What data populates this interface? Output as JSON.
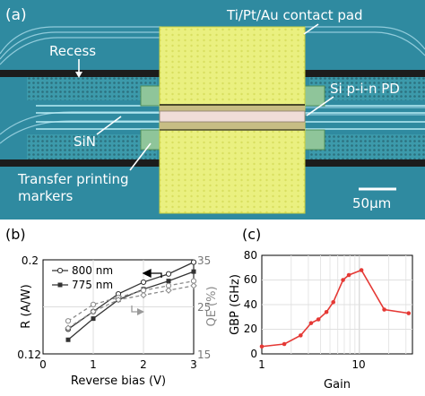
{
  "panel_a": {
    "label": "(a)",
    "annotations": {
      "contact_pad": "Ti/Pt/Au contact pad",
      "recess": "Recess",
      "photodiode": "Si p-i-n PD",
      "sin": "SiN",
      "markers_line1": "Transfer printing",
      "markers_line2": "markers",
      "scale_bar": "50μm"
    },
    "colors": {
      "substrate": "#2f8aa0",
      "recess_band": "#1c1c1c",
      "pad": "#eef070",
      "waveguide": "#9fd8e8"
    }
  },
  "panel_b": {
    "label": "(b)",
    "legend": [
      "800 nm",
      "775 nm"
    ],
    "left_axis_ticks": [
      "0.2",
      "0.12"
    ],
    "right_axis_ticks": [
      "35",
      "25",
      "15"
    ],
    "x_ticks": [
      "0",
      "1",
      "2",
      "3"
    ],
    "xlabel": "Reverse bias (V)",
    "ylabel_left": "R (A/W)",
    "ylabel_right": "QE (%)"
  },
  "panel_c": {
    "label": "(c)",
    "y_ticks": [
      "80",
      "60",
      "40",
      "20",
      "0"
    ],
    "x_ticks": [
      "1",
      "10"
    ],
    "xlabel": "Gain",
    "ylabel": "GBP (GHz)"
  },
  "chart_data": [
    {
      "type": "line",
      "title": "",
      "xlabel": "Reverse bias (V)",
      "ylabel": "R (A/W)",
      "y2label": "QE (%)",
      "xlim": [
        0,
        3
      ],
      "ylim": [
        0.12,
        0.2
      ],
      "y2lim": [
        15,
        35
      ],
      "grid": true,
      "legend_position": "top-left",
      "series": [
        {
          "name": "800 nm",
          "axis": "left",
          "marker": "open-circle",
          "x": [
            0.5,
            1,
            1.5,
            2,
            2.5,
            3
          ],
          "values": [
            0.141,
            0.156,
            0.171,
            0.181,
            0.188,
            0.198
          ]
        },
        {
          "name": "775 nm",
          "axis": "left",
          "marker": "filled-square",
          "x": [
            0.5,
            1,
            1.5,
            2,
            2.5,
            3
          ],
          "values": [
            0.132,
            0.15,
            0.166,
            0.175,
            0.182,
            0.19
          ]
        },
        {
          "name": "",
          "axis": "right",
          "style": "dashed",
          "marker": "open-circle",
          "x": [
            0.5,
            1,
            1.5,
            2,
            2.5,
            3
          ],
          "values": [
            22,
            25.5,
            27,
            28.5,
            29.5,
            30.5
          ]
        },
        {
          "name": "",
          "axis": "right",
          "style": "dashed",
          "marker": "open-diamond",
          "x": [
            0.5,
            1,
            1.5,
            2,
            2.5,
            3
          ],
          "values": [
            20.5,
            24,
            26.5,
            27.5,
            28.5,
            29.5
          ]
        }
      ]
    },
    {
      "type": "line",
      "title": "",
      "xlabel": "Gain",
      "ylabel": "GBP (GHz)",
      "xscale": "log",
      "xlim": [
        1,
        35
      ],
      "ylim": [
        0,
        80
      ],
      "grid": true,
      "series": [
        {
          "name": "",
          "color": "#e53935",
          "x": [
            1,
            1.7,
            2.5,
            3.2,
            3.8,
            4.6,
            5.4,
            6.8,
            7.8,
            10.5,
            18,
            32
          ],
          "values": [
            6,
            8,
            15,
            25,
            28,
            34,
            42,
            60,
            64,
            68,
            36,
            33
          ]
        }
      ]
    }
  ]
}
